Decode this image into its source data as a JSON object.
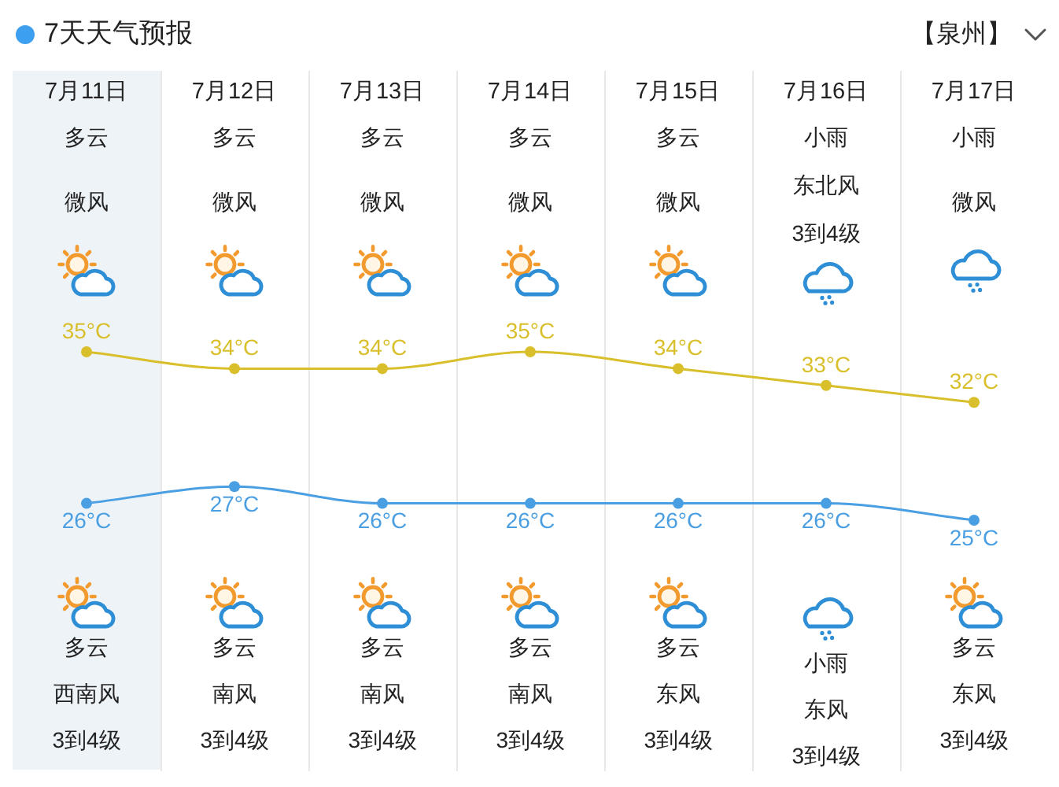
{
  "chart_data": {
    "type": "line",
    "title": "7天天气预报",
    "categories": [
      "7月11日",
      "7月12日",
      "7月13日",
      "7月14日",
      "7月15日",
      "7月16日",
      "7月17日"
    ],
    "series": [
      {
        "color": "#d9bf2b",
        "values": [
          35,
          34,
          34,
          35,
          34,
          33,
          32
        ],
        "value_labels": [
          "35°C",
          "34°C",
          "34°C",
          "35°C",
          "34°C",
          "33°C",
          "32°C"
        ]
      },
      {
        "color": "#4a9fe3",
        "values": [
          26,
          27,
          26,
          26,
          26,
          26,
          25
        ],
        "value_labels": [
          "26°C",
          "27°C",
          "26°C",
          "26°C",
          "26°C",
          "26°C",
          "25°C"
        ]
      }
    ],
    "marker": "circle",
    "grid": "x",
    "tick_labels": "x",
    "bands": [
      {
        "axis": "x",
        "from": "7月11日",
        "to": "7月11日",
        "color": "#eef3f8"
      }
    ],
    "annotations": [
      "【泉州】",
      "多云",
      "微风",
      "多云",
      "微风",
      "多云",
      "微风",
      "多云",
      "微风",
      "多云",
      "微风",
      "小雨",
      "东北风",
      "3到4级",
      "小雨",
      "微风",
      "多云",
      "西南风",
      "3到4级",
      "多云",
      "南风",
      "3到4级",
      "多云",
      "南风",
      "3到4级",
      "多云",
      "南风",
      "3到4级",
      "多云",
      "东风",
      "3到4级",
      "小雨",
      "东风",
      "3到4级",
      "多云",
      "东风",
      "3到4级"
    ]
  }
}
